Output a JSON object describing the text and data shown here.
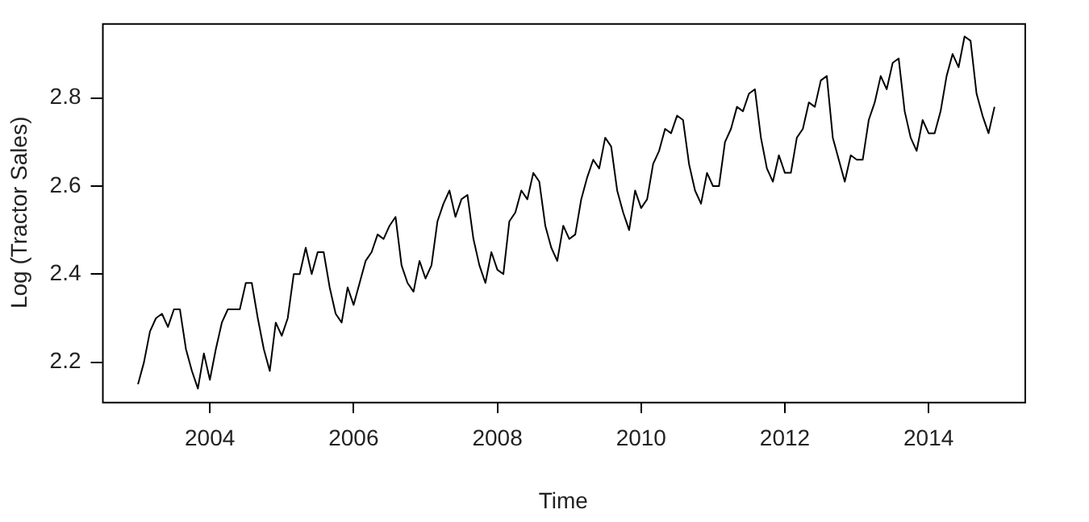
{
  "chart_data": {
    "type": "line",
    "xlabel": "Time",
    "ylabel": "Log (Tractor Sales)",
    "x": [
      "2003-01",
      "2003-02",
      "2003-03",
      "2003-04",
      "2003-05",
      "2003-06",
      "2003-07",
      "2003-08",
      "2003-09",
      "2003-10",
      "2003-11",
      "2003-12",
      "2004-01",
      "2004-02",
      "2004-03",
      "2004-04",
      "2004-05",
      "2004-06",
      "2004-07",
      "2004-08",
      "2004-09",
      "2004-10",
      "2004-11",
      "2004-12",
      "2005-01",
      "2005-02",
      "2005-03",
      "2005-04",
      "2005-05",
      "2005-06",
      "2005-07",
      "2005-08",
      "2005-09",
      "2005-10",
      "2005-11",
      "2005-12",
      "2006-01",
      "2006-02",
      "2006-03",
      "2006-04",
      "2006-05",
      "2006-06",
      "2006-07",
      "2006-08",
      "2006-09",
      "2006-10",
      "2006-11",
      "2006-12",
      "2007-01",
      "2007-02",
      "2007-03",
      "2007-04",
      "2007-05",
      "2007-06",
      "2007-07",
      "2007-08",
      "2007-09",
      "2007-10",
      "2007-11",
      "2007-12",
      "2008-01",
      "2008-02",
      "2008-03",
      "2008-04",
      "2008-05",
      "2008-06",
      "2008-07",
      "2008-08",
      "2008-09",
      "2008-10",
      "2008-11",
      "2008-12",
      "2009-01",
      "2009-02",
      "2009-03",
      "2009-04",
      "2009-05",
      "2009-06",
      "2009-07",
      "2009-08",
      "2009-09",
      "2009-10",
      "2009-11",
      "2009-12",
      "2010-01",
      "2010-02",
      "2010-03",
      "2010-04",
      "2010-05",
      "2010-06",
      "2010-07",
      "2010-08",
      "2010-09",
      "2010-10",
      "2010-11",
      "2010-12",
      "2011-01",
      "2011-02",
      "2011-03",
      "2011-04",
      "2011-05",
      "2011-06",
      "2011-07",
      "2011-08",
      "2011-09",
      "2011-10",
      "2011-11",
      "2011-12",
      "2012-01",
      "2012-02",
      "2012-03",
      "2012-04",
      "2012-05",
      "2012-06",
      "2012-07",
      "2012-08",
      "2012-09",
      "2012-10",
      "2012-11",
      "2012-12",
      "2013-01",
      "2013-02",
      "2013-03",
      "2013-04",
      "2013-05",
      "2013-06",
      "2013-07",
      "2013-08",
      "2013-09",
      "2013-10",
      "2013-11",
      "2013-12",
      "2014-01",
      "2014-02",
      "2014-03",
      "2014-04",
      "2014-05",
      "2014-06",
      "2014-07",
      "2014-08",
      "2014-09",
      "2014-10",
      "2014-11",
      "2014-12"
    ],
    "series": [
      {
        "color": "#000000",
        "values": [
          2.15,
          2.2,
          2.27,
          2.3,
          2.31,
          2.28,
          2.32,
          2.32,
          2.23,
          2.18,
          2.14,
          2.22,
          2.16,
          2.23,
          2.29,
          2.32,
          2.32,
          2.32,
          2.38,
          2.38,
          2.3,
          2.23,
          2.18,
          2.29,
          2.26,
          2.3,
          2.4,
          2.4,
          2.46,
          2.4,
          2.45,
          2.45,
          2.37,
          2.31,
          2.29,
          2.37,
          2.33,
          2.38,
          2.43,
          2.45,
          2.49,
          2.48,
          2.51,
          2.53,
          2.42,
          2.38,
          2.36,
          2.43,
          2.39,
          2.42,
          2.52,
          2.56,
          2.59,
          2.53,
          2.57,
          2.58,
          2.48,
          2.42,
          2.38,
          2.45,
          2.41,
          2.4,
          2.52,
          2.54,
          2.59,
          2.57,
          2.63,
          2.61,
          2.51,
          2.46,
          2.43,
          2.51,
          2.48,
          2.49,
          2.57,
          2.62,
          2.66,
          2.64,
          2.71,
          2.69,
          2.59,
          2.54,
          2.5,
          2.59,
          2.55,
          2.57,
          2.65,
          2.68,
          2.73,
          2.72,
          2.76,
          2.75,
          2.65,
          2.59,
          2.56,
          2.63,
          2.6,
          2.6,
          2.7,
          2.73,
          2.78,
          2.77,
          2.81,
          2.82,
          2.71,
          2.64,
          2.61,
          2.67,
          2.63,
          2.63,
          2.71,
          2.73,
          2.79,
          2.78,
          2.84,
          2.85,
          2.71,
          2.66,
          2.61,
          2.67,
          2.66,
          2.66,
          2.75,
          2.79,
          2.85,
          2.82,
          2.88,
          2.89,
          2.77,
          2.71,
          2.68,
          2.75,
          2.72,
          2.72,
          2.77,
          2.85,
          2.9,
          2.87,
          2.94,
          2.93,
          2.81,
          2.76,
          2.72,
          2.78
        ]
      }
    ],
    "xlim": [
      "2002-07",
      "2015-05"
    ],
    "xticks": [
      "2004",
      "2006",
      "2008",
      "2010",
      "2012",
      "2014"
    ],
    "ylim": [
      2.11,
      2.97
    ],
    "yticks": [
      2.2,
      2.4,
      2.6,
      2.8
    ],
    "grid": false,
    "legend": false,
    "marker": "none",
    "line_style": "solid"
  }
}
